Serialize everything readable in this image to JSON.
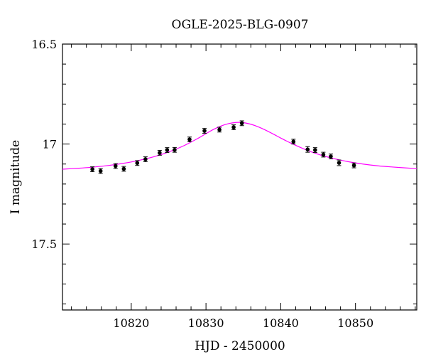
{
  "chart_data": {
    "type": "scatter",
    "title": "OGLE-2025-BLG-0907",
    "xlabel": "HJD - 2450000",
    "ylabel": "I magnitude",
    "xlim": [
      10810.8,
      10858.2
    ],
    "ylim": [
      17.83,
      16.5
    ],
    "y_inverted": true,
    "x_ticks": [
      10820,
      10830,
      10840,
      10850
    ],
    "x_tick_labels": [
      "10820",
      "10830",
      "10840",
      "10850"
    ],
    "y_ticks": [
      16.5,
      17,
      17.5
    ],
    "y_tick_labels": [
      "16.5",
      "17",
      "17.5"
    ],
    "model_color": "#ff00ff",
    "points_color": "#000000",
    "series": [
      {
        "marker": "filled-circle",
        "points": [
          {
            "x": 10814.8,
            "y": 17.126,
            "err": 0.012
          },
          {
            "x": 10815.9,
            "y": 17.135,
            "err": 0.012
          },
          {
            "x": 10817.9,
            "y": 17.11,
            "err": 0.012
          },
          {
            "x": 10819.0,
            "y": 17.124,
            "err": 0.012
          },
          {
            "x": 10820.8,
            "y": 17.095,
            "err": 0.012
          },
          {
            "x": 10821.9,
            "y": 17.076,
            "err": 0.012
          },
          {
            "x": 10823.8,
            "y": 17.044,
            "err": 0.012
          },
          {
            "x": 10824.8,
            "y": 17.03,
            "err": 0.012
          },
          {
            "x": 10825.8,
            "y": 17.029,
            "err": 0.012
          },
          {
            "x": 10827.8,
            "y": 16.977,
            "err": 0.012
          },
          {
            "x": 10829.8,
            "y": 16.934,
            "err": 0.012
          },
          {
            "x": 10831.8,
            "y": 16.928,
            "err": 0.012
          },
          {
            "x": 10833.7,
            "y": 16.916,
            "err": 0.012
          },
          {
            "x": 10834.8,
            "y": 16.896,
            "err": 0.012
          },
          {
            "x": 10841.7,
            "y": 16.988,
            "err": 0.012
          },
          {
            "x": 10843.6,
            "y": 17.027,
            "err": 0.014
          },
          {
            "x": 10844.6,
            "y": 17.03,
            "err": 0.012
          },
          {
            "x": 10845.7,
            "y": 17.053,
            "err": 0.012
          },
          {
            "x": 10846.7,
            "y": 17.062,
            "err": 0.012
          },
          {
            "x": 10847.8,
            "y": 17.094,
            "err": 0.014
          },
          {
            "x": 10849.8,
            "y": 17.107,
            "err": 0.012
          }
        ]
      }
    ],
    "model": {
      "type": "line",
      "x": [
        10810.8,
        10813,
        10815,
        10817,
        10819,
        10821,
        10823,
        10825,
        10827,
        10829,
        10830,
        10831,
        10832,
        10833,
        10834,
        10835,
        10836,
        10837,
        10838,
        10839,
        10840,
        10841,
        10843,
        10845,
        10847,
        10849,
        10851,
        10853,
        10855,
        10858.2
      ],
      "y": [
        17.126,
        17.121,
        17.115,
        17.107,
        17.096,
        17.082,
        17.064,
        17.04,
        17.009,
        16.97,
        16.948,
        16.927,
        16.91,
        16.898,
        16.892,
        16.893,
        16.901,
        16.914,
        16.931,
        16.95,
        16.97,
        16.989,
        17.023,
        17.051,
        17.072,
        17.088,
        17.1,
        17.109,
        17.115,
        17.123
      ]
    }
  }
}
